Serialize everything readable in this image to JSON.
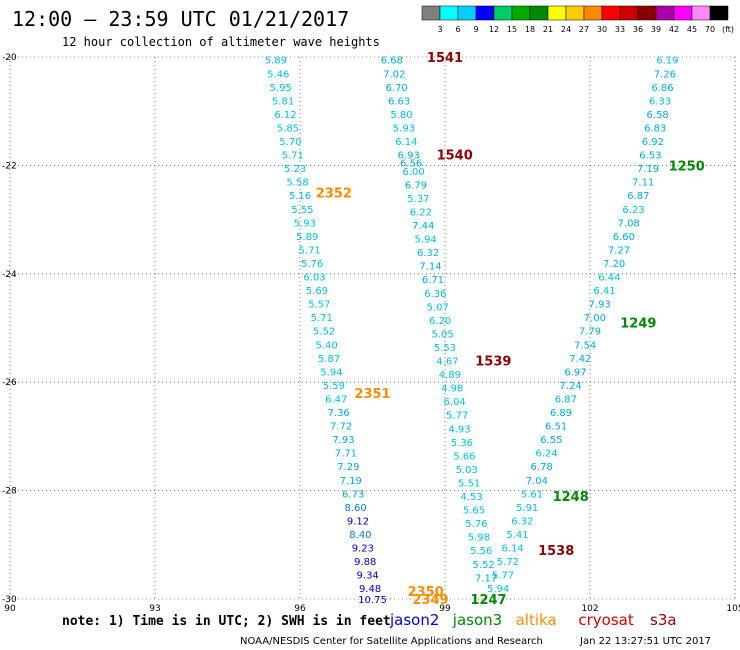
{
  "header": {
    "title": "12:00 – 23:59 UTC 01/21/2017",
    "subtitle": "12 hour collection of altimeter wave heights",
    "legend_values": [
      "3",
      "6",
      "9",
      "12",
      "15",
      "18",
      "21",
      "24",
      "27",
      "30",
      "33",
      "36",
      "39",
      "42",
      "45",
      "70"
    ],
    "legend_unit": "(ft)",
    "legend_colors": [
      "#808080",
      "#00ffff",
      "#00d0ff",
      "#0000ff",
      "#00cc66",
      "#00aa00",
      "#008800",
      "#ffff00",
      "#ffcc00",
      "#ff8800",
      "#ff0000",
      "#cc0000",
      "#880000",
      "#aa00aa",
      "#ff00ff",
      "#ff88ff",
      "#000000"
    ]
  },
  "chart_data": {
    "type": "scatter",
    "title": "12:00 – 23:59 UTC 01/21/2017",
    "xlim": [
      90,
      105
    ],
    "ylim": [
      -30,
      -20
    ],
    "x_ticks": [
      "90",
      "93",
      "96",
      "99",
      "102",
      "105"
    ],
    "y_ticks": [
      "-20",
      "-22",
      "-24",
      "-26",
      "-28",
      "-30"
    ],
    "grid": true,
    "series": [
      {
        "name": "jason2",
        "color": "#0000cc",
        "track": "2349",
        "points": [
          {
            "x": 95.5,
            "y": -20.05,
            "v": "5.89"
          },
          {
            "x": 95.55,
            "y": -20.3,
            "v": "5.46"
          },
          {
            "x": 95.6,
            "y": -20.55,
            "v": "5.95"
          },
          {
            "x": 95.65,
            "y": -20.8,
            "v": "5.81"
          },
          {
            "x": 95.7,
            "y": -21.05,
            "v": "6.12"
          },
          {
            "x": 95.75,
            "y": -21.3,
            "v": "5.85"
          },
          {
            "x": 95.8,
            "y": -21.55,
            "v": "5.70"
          },
          {
            "x": 95.85,
            "y": -21.8,
            "v": "5.71"
          },
          {
            "x": 95.9,
            "y": -22.05,
            "v": "5.23"
          },
          {
            "x": 95.95,
            "y": -22.3,
            "v": "5.58"
          },
          {
            "x": 96.0,
            "y": -22.55,
            "v": "5.16"
          },
          {
            "x": 96.05,
            "y": -22.8,
            "v": "5.55"
          },
          {
            "x": 96.1,
            "y": -23.05,
            "v": "5.93"
          },
          {
            "x": 96.15,
            "y": -23.3,
            "v": "5.89"
          },
          {
            "x": 96.2,
            "y": -23.55,
            "v": "5.71"
          },
          {
            "x": 96.25,
            "y": -23.8,
            "v": "5.76"
          },
          {
            "x": 96.3,
            "y": -24.05,
            "v": "6.03"
          },
          {
            "x": 96.35,
            "y": -24.3,
            "v": "5.69"
          },
          {
            "x": 96.4,
            "y": -24.55,
            "v": "5.57"
          },
          {
            "x": 96.45,
            "y": -24.8,
            "v": "5.71"
          },
          {
            "x": 96.5,
            "y": -25.05,
            "v": "5.52"
          },
          {
            "x": 96.55,
            "y": -25.3,
            "v": "5.40"
          },
          {
            "x": 96.6,
            "y": -25.55,
            "v": "5.87"
          },
          {
            "x": 96.65,
            "y": -25.8,
            "v": "5.94"
          },
          {
            "x": 96.7,
            "y": -26.05,
            "v": "5.59"
          },
          {
            "x": 96.75,
            "y": -26.3,
            "v": "6.47"
          },
          {
            "x": 96.8,
            "y": -26.55,
            "v": "7.36"
          },
          {
            "x": 96.85,
            "y": -26.8,
            "v": "7.72"
          },
          {
            "x": 96.9,
            "y": -27.05,
            "v": "7.93"
          },
          {
            "x": 96.95,
            "y": -27.3,
            "v": "7.71"
          },
          {
            "x": 97.0,
            "y": -27.55,
            "v": "7.29"
          },
          {
            "x": 97.05,
            "y": -27.8,
            "v": "7.19"
          },
          {
            "x": 97.1,
            "y": -28.05,
            "v": "6.73"
          },
          {
            "x": 97.15,
            "y": -28.3,
            "v": "8.60"
          },
          {
            "x": 97.2,
            "y": -28.55,
            "v": "9.12"
          },
          {
            "x": 97.25,
            "y": -28.8,
            "v": "8.40"
          },
          {
            "x": 97.3,
            "y": -29.05,
            "v": "9.23"
          },
          {
            "x": 97.35,
            "y": -29.3,
            "v": "9.88"
          },
          {
            "x": 97.4,
            "y": -29.55,
            "v": "9.34"
          },
          {
            "x": 97.45,
            "y": -29.8,
            "v": "9.48"
          },
          {
            "x": 97.5,
            "y": -30.0,
            "v": "10.75"
          }
        ]
      },
      {
        "name": "altika",
        "color": "#ff8c00",
        "track": "2352",
        "points": []
      },
      {
        "name": "cryosat",
        "color": "#cc0000",
        "track": "1541",
        "points": [
          {
            "x": 97.9,
            "y": -20.05,
            "v": "6.68"
          },
          {
            "x": 97.95,
            "y": -20.3,
            "v": "7.02"
          },
          {
            "x": 98.0,
            "y": -20.55,
            "v": "6.70"
          },
          {
            "x": 98.05,
            "y": -20.8,
            "v": "6.63"
          },
          {
            "x": 98.1,
            "y": -21.05,
            "v": "5.80"
          },
          {
            "x": 98.15,
            "y": -21.3,
            "v": "5.93"
          },
          {
            "x": 98.2,
            "y": -21.55,
            "v": "6.14"
          },
          {
            "x": 98.25,
            "y": -21.8,
            "v": "6.93"
          },
          {
            "x": 98.3,
            "y": -21.95,
            "v": "6.56"
          },
          {
            "x": 98.35,
            "y": -22.1,
            "v": "6.00"
          },
          {
            "x": 98.4,
            "y": -22.35,
            "v": "6.79"
          },
          {
            "x": 98.45,
            "y": -22.6,
            "v": "5.37"
          },
          {
            "x": 98.5,
            "y": -22.85,
            "v": "6.22"
          },
          {
            "x": 98.55,
            "y": -23.1,
            "v": "7.44"
          },
          {
            "x": 98.6,
            "y": -23.35,
            "v": "5.94"
          },
          {
            "x": 98.65,
            "y": -23.6,
            "v": "6.32"
          },
          {
            "x": 98.7,
            "y": -23.85,
            "v": "7.14"
          },
          {
            "x": 98.75,
            "y": -24.1,
            "v": "6.71"
          },
          {
            "x": 98.8,
            "y": -24.35,
            "v": "6.36"
          },
          {
            "x": 98.85,
            "y": -24.6,
            "v": "5.07"
          },
          {
            "x": 98.9,
            "y": -24.85,
            "v": "6.20"
          },
          {
            "x": 98.95,
            "y": -25.1,
            "v": "5.05"
          },
          {
            "x": 99.0,
            "y": -25.35,
            "v": "5.53"
          },
          {
            "x": 99.05,
            "y": -25.6,
            "v": "4.67"
          },
          {
            "x": 99.1,
            "y": -25.85,
            "v": "4.89"
          },
          {
            "x": 99.15,
            "y": -26.1,
            "v": "4.98"
          },
          {
            "x": 99.2,
            "y": -26.35,
            "v": "6.04"
          },
          {
            "x": 99.25,
            "y": -26.6,
            "v": "5.77"
          },
          {
            "x": 99.3,
            "y": -26.85,
            "v": "4.93"
          },
          {
            "x": 99.35,
            "y": -27.1,
            "v": "5.36"
          },
          {
            "x": 99.4,
            "y": -27.35,
            "v": "5.66"
          },
          {
            "x": 99.45,
            "y": -27.6,
            "v": "5.03"
          },
          {
            "x": 99.5,
            "y": -27.85,
            "v": "5.51"
          },
          {
            "x": 99.55,
            "y": -28.1,
            "v": "4.53"
          },
          {
            "x": 99.6,
            "y": -28.35,
            "v": "5.65"
          },
          {
            "x": 99.65,
            "y": -28.6,
            "v": "5.76"
          },
          {
            "x": 99.7,
            "y": -28.85,
            "v": "5.98"
          },
          {
            "x": 99.75,
            "y": -29.1,
            "v": "5.56"
          },
          {
            "x": 99.8,
            "y": -29.35,
            "v": "5.52"
          },
          {
            "x": 99.85,
            "y": -29.6,
            "v": "7.17"
          }
        ]
      },
      {
        "name": "jason3",
        "color": "#008800",
        "track": "1250",
        "points": [
          {
            "x": 103.6,
            "y": -20.05,
            "v": "6.19"
          },
          {
            "x": 103.55,
            "y": -20.3,
            "v": "7.26"
          },
          {
            "x": 103.5,
            "y": -20.55,
            "v": "6.86"
          },
          {
            "x": 103.45,
            "y": -20.8,
            "v": "6.33"
          },
          {
            "x": 103.4,
            "y": -21.05,
            "v": "6.58"
          },
          {
            "x": 103.35,
            "y": -21.3,
            "v": "6.83"
          },
          {
            "x": 103.3,
            "y": -21.55,
            "v": "6.92"
          },
          {
            "x": 103.25,
            "y": -21.8,
            "v": "6.53"
          },
          {
            "x": 103.2,
            "y": -22.05,
            "v": "7.19"
          },
          {
            "x": 103.1,
            "y": -22.3,
            "v": "7.11"
          },
          {
            "x": 103.0,
            "y": -22.55,
            "v": "6.87"
          },
          {
            "x": 102.9,
            "y": -22.8,
            "v": "6.23"
          },
          {
            "x": 102.8,
            "y": -23.05,
            "v": "7.08"
          },
          {
            "x": 102.7,
            "y": -23.3,
            "v": "6.60"
          },
          {
            "x": 102.6,
            "y": -23.55,
            "v": "7.27"
          },
          {
            "x": 102.5,
            "y": -23.8,
            "v": "7.20"
          },
          {
            "x": 102.4,
            "y": -24.05,
            "v": "6.44"
          },
          {
            "x": 102.3,
            "y": -24.3,
            "v": "6.41"
          },
          {
            "x": 102.2,
            "y": -24.55,
            "v": "7.93"
          },
          {
            "x": 102.1,
            "y": -24.8,
            "v": "7.00"
          },
          {
            "x": 102.0,
            "y": -25.05,
            "v": "7.79"
          },
          {
            "x": 101.9,
            "y": -25.3,
            "v": "7.54"
          },
          {
            "x": 101.8,
            "y": -25.55,
            "v": "7.42"
          },
          {
            "x": 101.7,
            "y": -25.8,
            "v": "6.97"
          },
          {
            "x": 101.6,
            "y": -26.05,
            "v": "7.24"
          },
          {
            "x": 101.5,
            "y": -26.3,
            "v": "6.87"
          },
          {
            "x": 101.4,
            "y": -26.55,
            "v": "6.89"
          },
          {
            "x": 101.3,
            "y": -26.8,
            "v": "6.51"
          },
          {
            "x": 101.2,
            "y": -27.05,
            "v": "6.55"
          },
          {
            "x": 101.1,
            "y": -27.3,
            "v": "6.24"
          },
          {
            "x": 101.0,
            "y": -27.55,
            "v": "6.78"
          },
          {
            "x": 100.9,
            "y": -27.8,
            "v": "7.04"
          },
          {
            "x": 100.8,
            "y": -28.05,
            "v": "5.61"
          },
          {
            "x": 100.7,
            "y": -28.3,
            "v": "5.91"
          },
          {
            "x": 100.6,
            "y": -28.55,
            "v": "6.32"
          },
          {
            "x": 100.5,
            "y": -28.8,
            "v": "5.41"
          },
          {
            "x": 100.4,
            "y": -29.05,
            "v": "6.14"
          },
          {
            "x": 100.3,
            "y": -29.3,
            "v": "5.72"
          },
          {
            "x": 100.2,
            "y": -29.55,
            "v": "5.77"
          },
          {
            "x": 100.1,
            "y": -29.8,
            "v": "5.94"
          }
        ]
      }
    ],
    "track_labels": [
      {
        "text": "1541",
        "x": 99.0,
        "y": -20.0,
        "color": "#8b0000"
      },
      {
        "text": "1540",
        "x": 99.2,
        "y": -21.8,
        "color": "#8b0000"
      },
      {
        "text": "2352",
        "x": 96.7,
        "y": -22.5,
        "color": "#ff8c00"
      },
      {
        "text": "1250",
        "x": 104.0,
        "y": -22.0,
        "color": "#008800"
      },
      {
        "text": "1249",
        "x": 103.0,
        "y": -24.9,
        "color": "#008800"
      },
      {
        "text": "1539",
        "x": 100.0,
        "y": -25.6,
        "color": "#8b0000"
      },
      {
        "text": "2351",
        "x": 97.5,
        "y": -26.2,
        "color": "#ff8c00"
      },
      {
        "text": "1248",
        "x": 101.6,
        "y": -28.1,
        "color": "#008800"
      },
      {
        "text": "1538",
        "x": 101.3,
        "y": -29.1,
        "color": "#8b0000"
      },
      {
        "text": "2350",
        "x": 98.6,
        "y": -29.85,
        "color": "#ff8c00"
      },
      {
        "text": "2349",
        "x": 98.7,
        "y": -30.0,
        "color": "#ff8c00"
      },
      {
        "text": "1247",
        "x": 99.9,
        "y": -30.0,
        "color": "#008800"
      }
    ]
  },
  "footer": {
    "note": "note: 1) Time is in UTC; 2) SWH is in feet",
    "legend": [
      {
        "name": "jason2",
        "color": "#0000cc"
      },
      {
        "name": "jason3",
        "color": "#008800"
      },
      {
        "name": "altika",
        "color": "#ff8c00"
      },
      {
        "name": "cryosat",
        "color": "#cc0000"
      },
      {
        "name": "s3a",
        "color": "#8b0000"
      }
    ],
    "credit": "NOAA/NESDIS Center for Satellite Applications and Research",
    "timestamp": "Jan 22 13:27:51 UTC 2017"
  }
}
